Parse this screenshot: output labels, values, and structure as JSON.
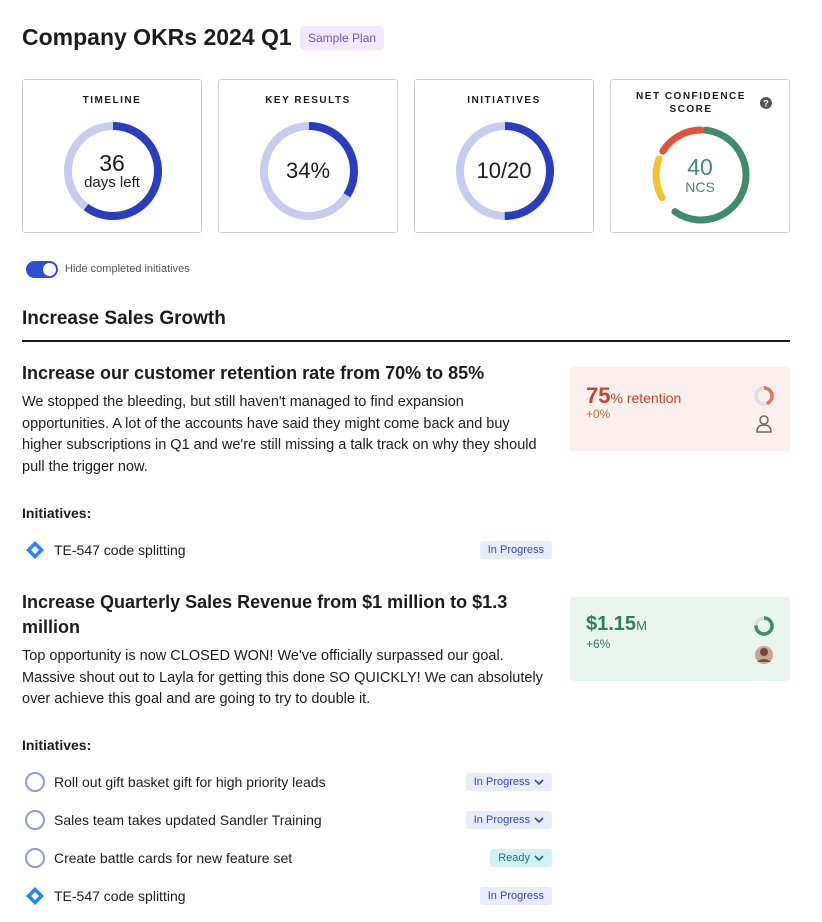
{
  "header": {
    "title": "Company OKRs 2024 Q1",
    "badge": "Sample Plan"
  },
  "cards": [
    {
      "label": "TIMELINE",
      "value": "36",
      "sub": "days left"
    },
    {
      "label": "KEY RESULTS",
      "value": "34%"
    },
    {
      "label": "INITIATIVES",
      "value": "10/20"
    },
    {
      "label": "NET CONFIDENCE SCORE",
      "value": "40",
      "sub": "NCS"
    }
  ],
  "toggle": {
    "label": "Hide completed initiatives"
  },
  "section": {
    "title": "Increase Sales Growth",
    "key_results": [
      {
        "title": "Increase our customer retention rate from 70% to 85%",
        "description": "We stopped the bleeding, but still haven't managed to find expansion opportunities. A lot of the accounts have said they might come back and buy higher subscriptions in Q1 and we're still missing a talk track on why they should pull the trigger now.",
        "metric": {
          "value": "75",
          "unit": "% retention",
          "change": "+0%"
        },
        "initiatives_label": "Initiatives:",
        "initiatives": [
          {
            "name": "TE-547 code splitting",
            "status": "In Progress"
          }
        ]
      },
      {
        "title": "Increase Quarterly Sales Revenue from $1 million to $1.3 million",
        "description": "Top opportunity is now CLOSED WON! We've officially surpassed our goal. Massive shout out to Layla for getting this done SO QUICKLY! We can absolutely over achieve this goal and are going to try to double it.",
        "metric": {
          "value": "$1.15",
          "unit": "M",
          "change": "+6%"
        },
        "initiatives_label": "Initiatives:",
        "initiatives": [
          {
            "name": "Roll out gift basket gift for high priority leads",
            "status": "In Progress"
          },
          {
            "name": "Sales team takes updated Sandler Training",
            "status": "In Progress"
          },
          {
            "name": "Create battle cards for new feature set",
            "status": "Ready"
          },
          {
            "name": "TE-547 code splitting",
            "status": "In Progress"
          }
        ]
      }
    ]
  }
}
